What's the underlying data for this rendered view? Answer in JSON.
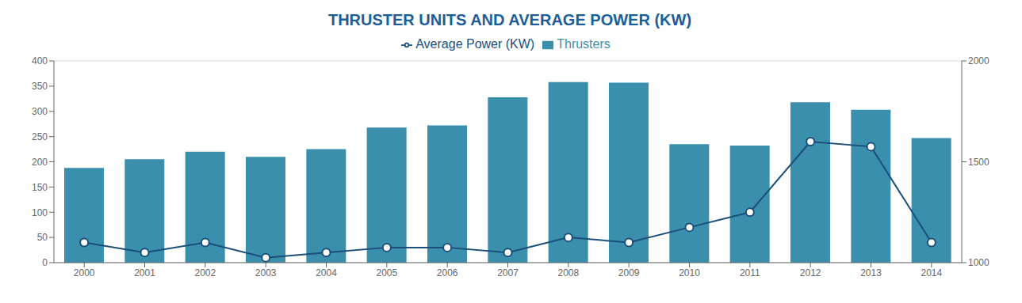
{
  "chart_data": {
    "type": "bar",
    "title": "THRUSTER UNITS AND AVERAGE POWER (KW)",
    "categories": [
      2000,
      2001,
      2002,
      2003,
      2004,
      2005,
      2006,
      2007,
      2008,
      2009,
      2010,
      2011,
      2012,
      2013,
      2014
    ],
    "series": [
      {
        "name": "Thrusters",
        "type": "bar",
        "color": "#3a8fad",
        "values": [
          188,
          205,
          220,
          210,
          225,
          268,
          272,
          328,
          358,
          357,
          235,
          232,
          318,
          303,
          247
        ]
      },
      {
        "name": "Average Power (KW)",
        "type": "line",
        "color": "#1a4f7a",
        "marker": "circle",
        "axis": "y2",
        "values": [
          1100,
          1050,
          1100,
          1025,
          1050,
          1075,
          1075,
          1050,
          1125,
          1100,
          1175,
          1250,
          1600,
          1575,
          1100
        ]
      }
    ],
    "ylim": [
      0,
      400
    ],
    "yticks": [
      0,
      50,
      100,
      150,
      200,
      250,
      300,
      350,
      400
    ],
    "y2lim": [
      1000,
      2000
    ],
    "y2ticks": [
      1000,
      1500,
      2000
    ],
    "grid": true,
    "legend": "top"
  }
}
